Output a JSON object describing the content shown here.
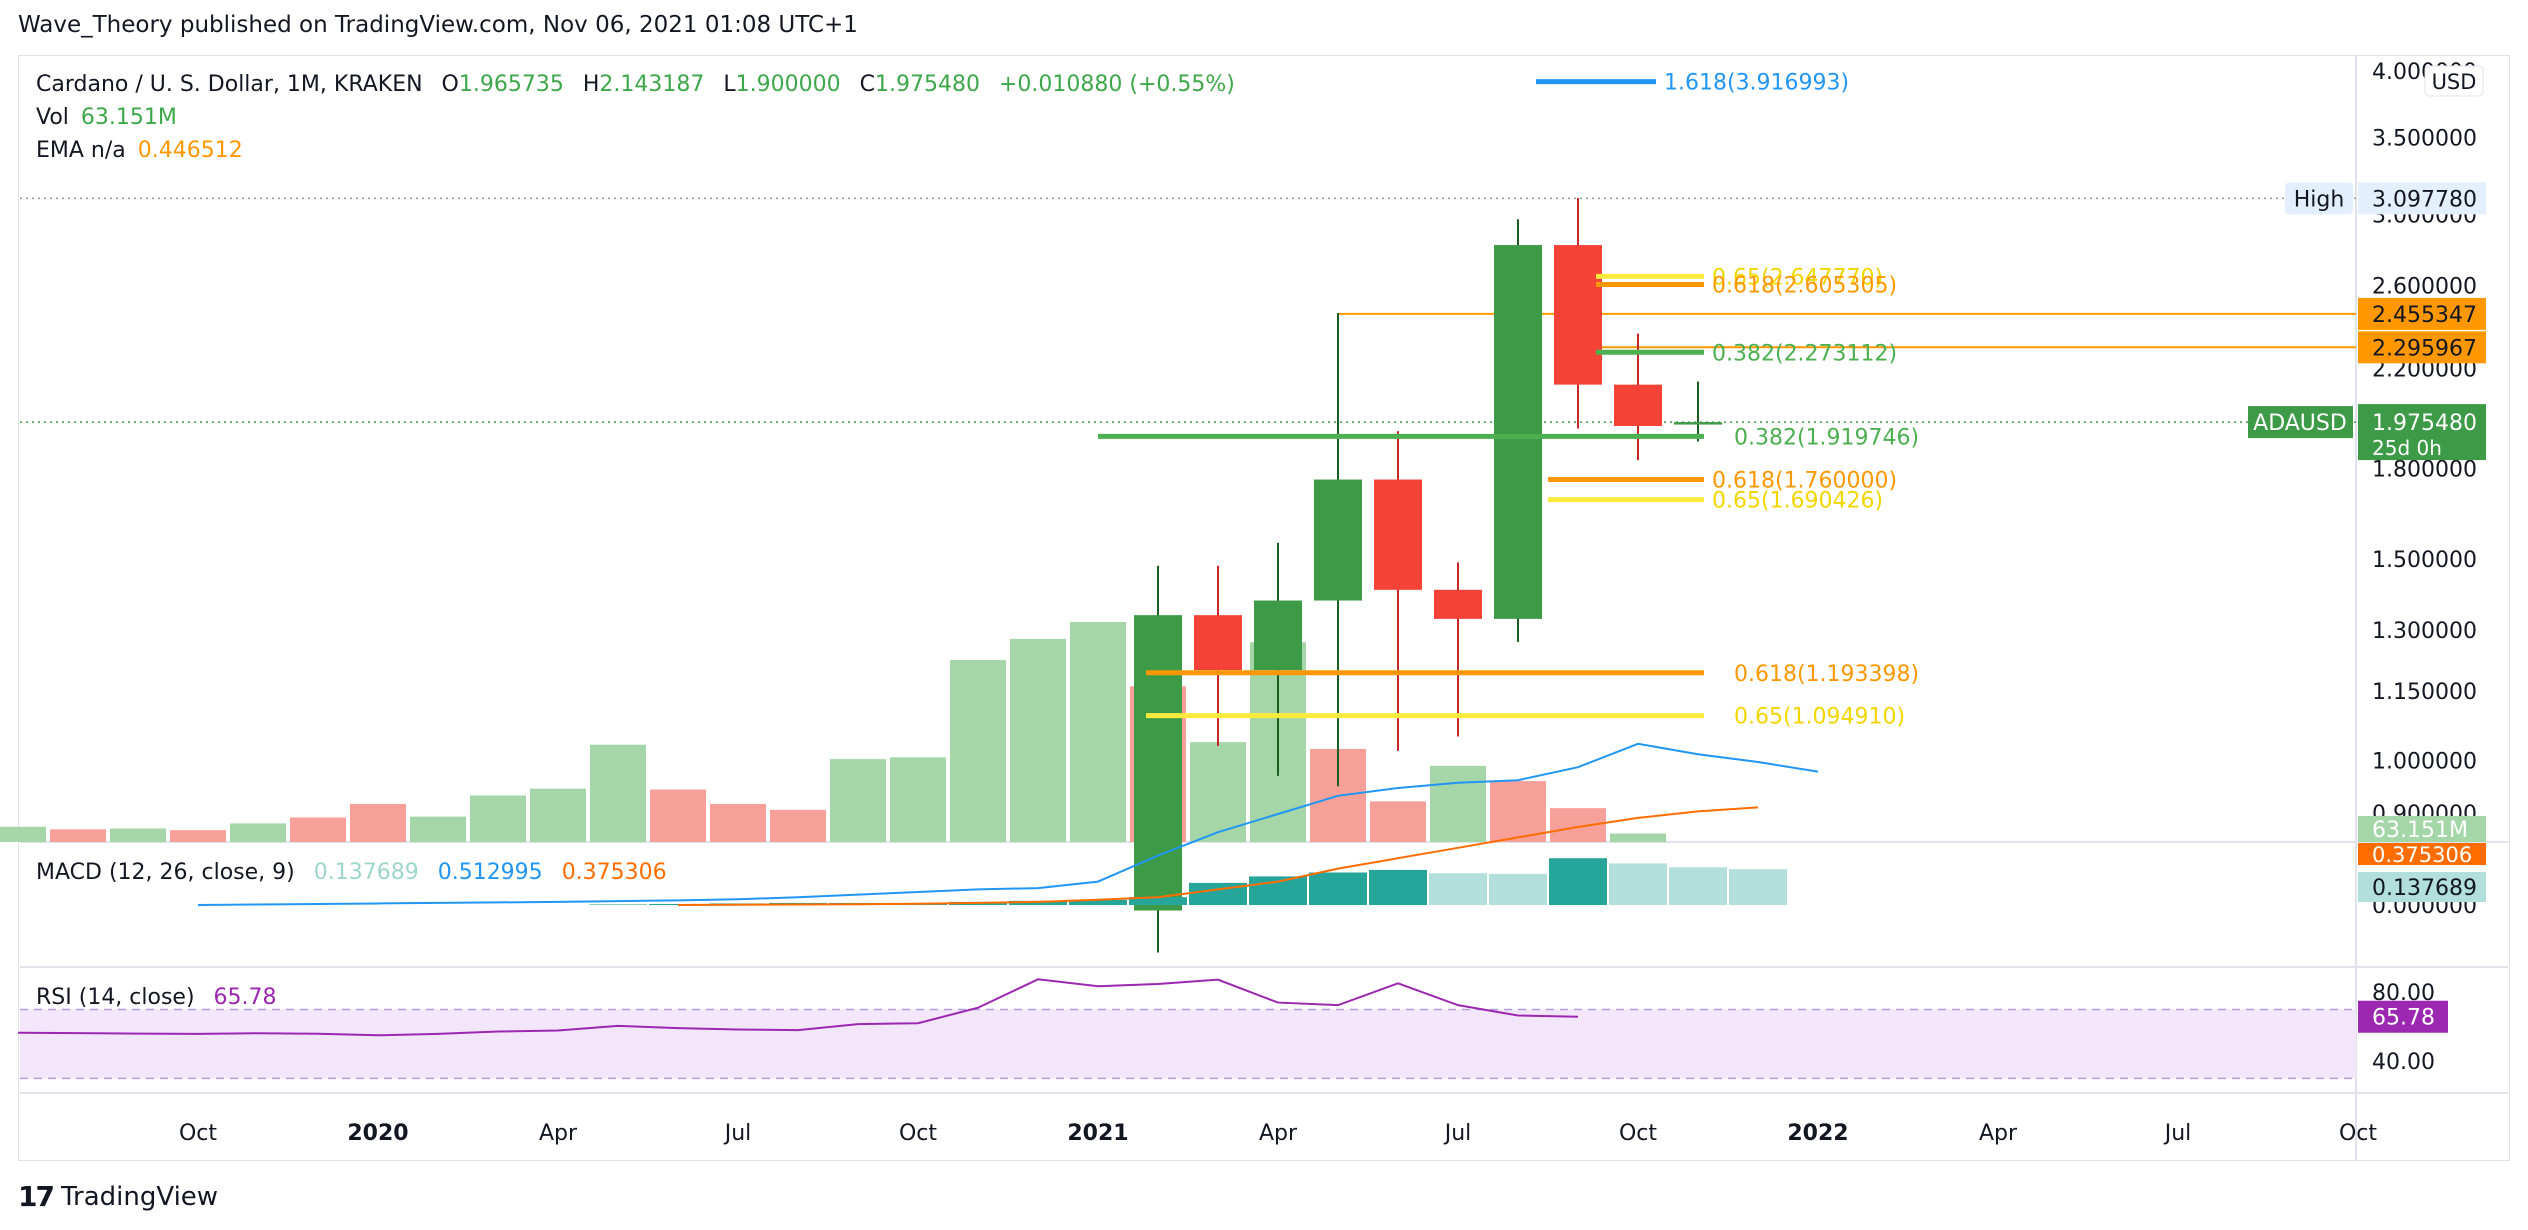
{
  "header": {
    "published_by": "Wave_Theory published on TradingView.com, Nov 06, 2021 01:08 UTC+1"
  },
  "legend": {
    "symbol": "Cardano / U. S. Dollar, 1M, KRAKEN",
    "open_label": "O",
    "open": "1.965735",
    "high_label": "H",
    "high": "2.143187",
    "low_label": "L",
    "low": "1.900000",
    "close_label": "C",
    "close": "1.975480",
    "change": "+0.010880 (+0.55%)",
    "vol_label": "Vol",
    "vol_value": "63.151M",
    "ema_label": "EMA  n/a",
    "ema_value": "0.446512"
  },
  "macd_legend": {
    "label": "MACD (12, 26, close, 9)",
    "hist": "0.137689",
    "macd": "0.512995",
    "signal": "0.375306"
  },
  "rsi_legend": {
    "label": "RSI (14, close)",
    "value": "65.78"
  },
  "footer": {
    "brand": "TradingView",
    "logo_text": "17"
  },
  "colors": {
    "up": "#3d9a46",
    "down": "#f44336",
    "vol_up": "#a5d6a7",
    "vol_down": "#f7a09a",
    "fib_green": "#4caf50",
    "fib_orange": "#ff9800",
    "fib_yellow": "#ffeb3b",
    "fib_blue": "#2196f3",
    "macd_line": "#2196f3",
    "signal_line": "#ff6d00",
    "rsi_line": "#9c27b0",
    "rsi_band": "#f3e5fa"
  },
  "chart_data": {
    "type": "candlestick",
    "title": "Cardano / U. S. Dollar, 1M, KRAKEN",
    "scale": "log",
    "x_labels": [
      "Oct",
      "2020",
      "Apr",
      "Jul",
      "Oct",
      "2021",
      "Apr",
      "Jul",
      "Oct",
      "2022",
      "Apr",
      "Jul",
      "Oct"
    ],
    "x_label_bold": [
      false,
      true,
      false,
      false,
      false,
      true,
      false,
      false,
      false,
      true,
      false,
      false,
      false
    ],
    "x_label_month_index": [
      3,
      6,
      9,
      12,
      15,
      18,
      21,
      24,
      27,
      30,
      33,
      36,
      39
    ],
    "price_ticks": [
      "4.000000",
      "3.500000",
      "3.000000",
      "2.600000",
      "2.200000",
      "1.800000",
      "1.500000",
      "1.300000",
      "1.150000",
      "1.000000",
      "0.900000"
    ],
    "price_tick_values": [
      4.0,
      3.5,
      3.0,
      2.6,
      2.2,
      1.8,
      1.5,
      1.3,
      1.15,
      1.0,
      0.9
    ],
    "ylim": [
      0.87,
      4.05
    ],
    "candles": [
      {
        "m": 19,
        "date": "2021-02",
        "o": 0.74,
        "h": 1.48,
        "l": 0.68,
        "c": 1.34
      },
      {
        "m": 20,
        "date": "2021-03",
        "o": 1.34,
        "h": 1.48,
        "l": 1.03,
        "c": 1.2
      },
      {
        "m": 21,
        "date": "2021-04",
        "o": 1.2,
        "h": 1.55,
        "l": 0.97,
        "c": 1.38
      },
      {
        "m": 22,
        "date": "2021-05",
        "o": 1.38,
        "h": 2.46,
        "l": 0.95,
        "c": 1.76
      },
      {
        "m": 23,
        "date": "2021-06",
        "o": 1.76,
        "h": 1.94,
        "l": 1.02,
        "c": 1.41
      },
      {
        "m": 24,
        "date": "2021-07",
        "o": 1.41,
        "h": 1.49,
        "l": 1.05,
        "c": 1.33
      },
      {
        "m": 25,
        "date": "2021-08",
        "o": 1.33,
        "h": 2.97,
        "l": 1.27,
        "c": 2.82
      },
      {
        "m": 26,
        "date": "2021-09",
        "o": 2.82,
        "h": 3.1,
        "l": 1.95,
        "c": 2.13
      },
      {
        "m": 27,
        "date": "2021-10",
        "o": 2.13,
        "h": 2.36,
        "l": 1.83,
        "c": 1.96
      },
      {
        "m": 28,
        "date": "2021-11",
        "o": 1.965735,
        "h": 2.143187,
        "l": 1.9,
        "c": 1.97548
      }
    ],
    "volume": {
      "start_month": 0,
      "values": [
        0.18,
        0.15,
        0.16,
        0.14,
        0.22,
        0.29,
        0.45,
        0.3,
        0.55,
        0.63,
        1.15,
        0.62,
        0.45,
        0.38,
        0.98,
        1.0,
        2.15,
        2.4,
        2.6,
        1.84,
        1.18,
        2.36,
        1.1,
        0.48,
        0.9,
        0.72,
        0.4,
        0.1
      ],
      "up": [
        true,
        false,
        true,
        false,
        true,
        false,
        false,
        true,
        true,
        true,
        true,
        false,
        false,
        false,
        true,
        true,
        true,
        true,
        true,
        false,
        true,
        true,
        false,
        false,
        true,
        false,
        false,
        true
      ],
      "last_label": "63.151M",
      "note": "relative volume, last bar = 63.151M"
    },
    "fib_levels": [
      {
        "label": "1.618(3.916993)",
        "value": 3.916993,
        "color": "#2196f3",
        "m_from": 25.3,
        "m_to": 27.3
      },
      {
        "label": "0.65(2.647770)",
        "value": 2.64777,
        "color": "#ffeb3b",
        "m_from": 26.3,
        "m_to": 28.1
      },
      {
        "label": "0.618(2.605305)",
        "value": 2.605305,
        "color": "#ff9800",
        "m_from": 26.3,
        "m_to": 28.1
      },
      {
        "label": "0.382(2.273112)",
        "value": 2.273112,
        "color": "#4caf50",
        "m_from": 26.3,
        "m_to": 28.1
      },
      {
        "label": "0.382(1.919746)",
        "value": 1.919746,
        "color": "#4caf50",
        "m_from": 18.0,
        "m_to": 28.1
      },
      {
        "label": "0.618(1.760000)",
        "value": 1.76,
        "color": "#ff9800",
        "m_from": 25.5,
        "m_to": 28.1
      },
      {
        "label": "0.65(1.690426)",
        "value": 1.690426,
        "color": "#ffeb3b",
        "m_from": 25.5,
        "m_to": 28.1
      },
      {
        "label": "0.618(1.193398)",
        "value": 1.193398,
        "color": "#ff9800",
        "m_from": 18.8,
        "m_to": 28.1
      },
      {
        "label": "0.65(1.094910)",
        "value": 1.09491,
        "color": "#ffeb3b",
        "m_from": 18.8,
        "m_to": 28.1
      }
    ],
    "horizontal_lines": [
      {
        "value": 2.455347,
        "label": "2.455347",
        "color": "#ff9800",
        "m_from": 22.0
      },
      {
        "value": 2.295967,
        "label": "2.295967",
        "color": "#ff9800",
        "m_from": 26.0
      }
    ],
    "high_marker": {
      "label": "High",
      "value": 3.09778,
      "value_label": "3.097780"
    },
    "current_price": {
      "symbol": "ADAUSD",
      "value": 1.97548,
      "value_label": "1.975480",
      "countdown": "25d 0h"
    },
    "macd": {
      "hist_start_month": 10,
      "hist": [
        0.002,
        0.004,
        0.006,
        0.008,
        0.008,
        0.008,
        0.012,
        0.016,
        0.02,
        0.03,
        0.085,
        0.11,
        0.125,
        0.135,
        0.122,
        0.12,
        0.18,
        0.16,
        0.145,
        0.137689
      ],
      "hist_up": [
        true,
        true,
        true,
        true,
        true,
        true,
        true,
        true,
        true,
        true,
        true,
        true,
        true,
        true,
        false,
        false,
        true,
        false,
        false,
        false
      ],
      "macd_start_month": 3,
      "macd_line": [
        0.0,
        0.002,
        0.004,
        0.006,
        0.008,
        0.01,
        0.012,
        0.015,
        0.018,
        0.022,
        0.03,
        0.04,
        0.05,
        0.06,
        0.065,
        0.09,
        0.19,
        0.28,
        0.35,
        0.42,
        0.45,
        0.47,
        0.48,
        0.53,
        0.62,
        0.58,
        0.55,
        0.512995
      ],
      "signal_start_month": 11,
      "signal_line": [
        0.0,
        0.001,
        0.002,
        0.003,
        0.005,
        0.008,
        0.012,
        0.02,
        0.03,
        0.06,
        0.09,
        0.14,
        0.18,
        0.22,
        0.26,
        0.3,
        0.335,
        0.36,
        0.375306
      ],
      "ticks": [
        "0.000000"
      ],
      "labels": {
        "signal": "0.375306",
        "hist": "0.137689"
      }
    },
    "rsi": {
      "start_month": 0,
      "values": [
        56.5,
        56.3,
        56.0,
        55.8,
        56.2,
        55.9,
        55.0,
        55.8,
        57.2,
        57.8,
        60.5,
        59.2,
        58.4,
        58.0,
        61.5,
        62.0,
        71.0,
        87.5,
        83.5,
        84.8,
        87.3,
        74.0,
        72.5,
        85.2,
        72.5,
        66.5,
        65.78
      ],
      "start_month_offset": 0,
      "band": [
        30,
        70
      ],
      "ticks": [
        "80.00",
        "40.00"
      ],
      "tick_values": [
        80,
        40
      ],
      "last_label": "65.78"
    }
  }
}
